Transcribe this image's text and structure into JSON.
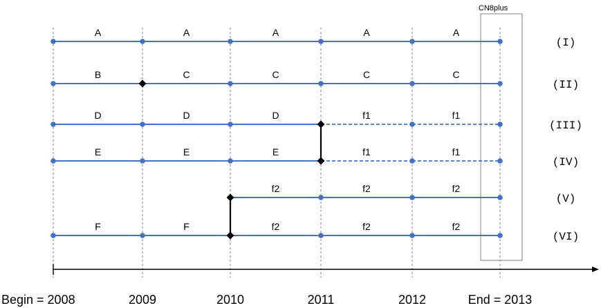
{
  "highlight_box": {
    "label": "CN8plus",
    "covers_year_index": 5
  },
  "years": [
    "Begin = 2008",
    "2009",
    "2010",
    "2011",
    "2012",
    "End = 2013"
  ],
  "rows": [
    {
      "label": "(I)",
      "points": [
        0,
        1,
        2,
        3,
        4,
        5
      ],
      "diamonds": [],
      "segments": [
        {
          "from": 0,
          "to": 1,
          "label": "A",
          "style": "solid"
        },
        {
          "from": 1,
          "to": 2,
          "label": "A",
          "style": "solid"
        },
        {
          "from": 2,
          "to": 3,
          "label": "A",
          "style": "solid"
        },
        {
          "from": 3,
          "to": 4,
          "label": "A",
          "style": "solid"
        },
        {
          "from": 4,
          "to": 5,
          "label": "A",
          "style": "solid"
        }
      ]
    },
    {
      "label": "(II)",
      "points": [
        0,
        2,
        3,
        4,
        5
      ],
      "diamonds": [
        1
      ],
      "segments": [
        {
          "from": 0,
          "to": 1,
          "label": "B",
          "style": "solid"
        },
        {
          "from": 1,
          "to": 2,
          "label": "C",
          "style": "solid"
        },
        {
          "from": 2,
          "to": 3,
          "label": "C",
          "style": "solid"
        },
        {
          "from": 3,
          "to": 4,
          "label": "C",
          "style": "solid"
        },
        {
          "from": 4,
          "to": 5,
          "label": "C",
          "style": "solid"
        }
      ]
    },
    {
      "label": "(III)",
      "points": [
        0,
        1,
        2,
        4,
        5
      ],
      "diamonds": [
        3
      ],
      "segments": [
        {
          "from": 0,
          "to": 1,
          "label": "D",
          "style": "solid"
        },
        {
          "from": 1,
          "to": 2,
          "label": "D",
          "style": "solid"
        },
        {
          "from": 2,
          "to": 3,
          "label": "D",
          "style": "solid"
        },
        {
          "from": 3,
          "to": 4,
          "label": "f1",
          "style": "dashed"
        },
        {
          "from": 4,
          "to": 5,
          "label": "f1",
          "style": "dashed"
        }
      ]
    },
    {
      "label": "(IV)",
      "points": [
        0,
        1,
        2,
        4,
        5
      ],
      "diamonds": [
        3
      ],
      "segments": [
        {
          "from": 0,
          "to": 1,
          "label": "E",
          "style": "solid"
        },
        {
          "from": 1,
          "to": 2,
          "label": "E",
          "style": "solid"
        },
        {
          "from": 2,
          "to": 3,
          "label": "E",
          "style": "solid"
        },
        {
          "from": 3,
          "to": 4,
          "label": "f1",
          "style": "dashed"
        },
        {
          "from": 4,
          "to": 5,
          "label": "f1",
          "style": "dashed"
        }
      ]
    },
    {
      "label": "(V)",
      "points": [
        3,
        4,
        5
      ],
      "diamonds": [
        2
      ],
      "segments": [
        {
          "from": 2,
          "to": 3,
          "label": "f2",
          "style": "solid"
        },
        {
          "from": 3,
          "to": 4,
          "label": "f2",
          "style": "solid"
        },
        {
          "from": 4,
          "to": 5,
          "label": "f2",
          "style": "solid"
        }
      ]
    },
    {
      "label": "(VI)",
      "points": [
        0,
        1,
        3,
        4,
        5
      ],
      "diamonds": [
        2
      ],
      "segments": [
        {
          "from": 0,
          "to": 1,
          "label": "F",
          "style": "solid"
        },
        {
          "from": 1,
          "to": 2,
          "label": "F",
          "style": "solid"
        },
        {
          "from": 2,
          "to": 3,
          "label": "f2",
          "style": "solid"
        },
        {
          "from": 3,
          "to": 4,
          "label": "f2",
          "style": "solid"
        },
        {
          "from": 4,
          "to": 5,
          "label": "f2",
          "style": "solid"
        }
      ]
    }
  ],
  "connectors": [
    {
      "year_index": 3,
      "from_row": 2,
      "to_row": 3
    },
    {
      "year_index": 2,
      "from_row": 4,
      "to_row": 5
    }
  ],
  "colors": {
    "line": "#4472C4",
    "join": "#000000",
    "grid": "#7f7f7f",
    "box": "#7f7f7f"
  }
}
